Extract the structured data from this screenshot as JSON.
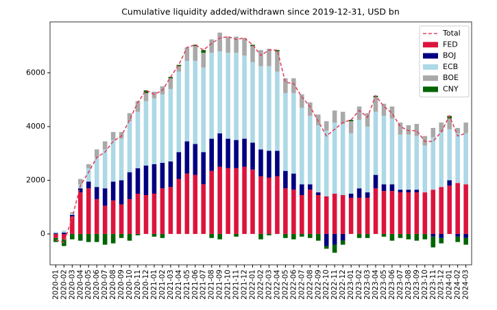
{
  "chart_data": {
    "type": "stacked-bar",
    "title": "Cumulative liquidity added/withdrawn since 2019-12-31, USD bn",
    "categories": [
      "2020-01",
      "2020-02",
      "2020-03",
      "2020-04",
      "2020-05",
      "2020-06",
      "2020-07",
      "2020-08",
      "2020-09",
      "2020-10",
      "2020-11",
      "2020-12",
      "2021-01",
      "2021-02",
      "2021-03",
      "2021-04",
      "2021-05",
      "2021-06",
      "2021-07",
      "2021-08",
      "2021-09",
      "2021-10",
      "2021-11",
      "2021-12",
      "2022-01",
      "2022-02",
      "2022-03",
      "2022-04",
      "2022-05",
      "2022-06",
      "2022-07",
      "2022-08",
      "2022-09",
      "2022-10",
      "2022-11",
      "2022-12",
      "2023-01",
      "2023-02",
      "2023-03",
      "2023-04",
      "2023-05",
      "2023-06",
      "2023-07",
      "2023-08",
      "2023-09",
      "2023-10",
      "2023-11",
      "2023-12",
      "2024-01",
      "2024-02",
      "2024-03"
    ],
    "series": [
      {
        "name": "FED",
        "color": "#dc143c",
        "values": [
          -150,
          -200,
          650,
          1550,
          1700,
          1300,
          1050,
          1250,
          1100,
          1300,
          1500,
          1450,
          1500,
          1700,
          1750,
          2050,
          2250,
          2200,
          1850,
          2350,
          2500,
          2450,
          2450,
          2500,
          2400,
          2150,
          2100,
          2150,
          1700,
          1650,
          1450,
          1650,
          1450,
          1400,
          1500,
          1450,
          1350,
          1350,
          1350,
          1700,
          1600,
          1600,
          1550,
          1550,
          1550,
          1550,
          1650,
          1750,
          1800,
          1900,
          1850
        ]
      },
      {
        "name": "BOJ",
        "color": "#000080",
        "values": [
          30,
          50,
          60,
          150,
          250,
          450,
          650,
          700,
          900,
          1000,
          950,
          1100,
          1100,
          950,
          950,
          1000,
          1200,
          1150,
          1200,
          1200,
          1250,
          1100,
          1050,
          1050,
          1000,
          1000,
          1000,
          950,
          650,
          600,
          400,
          200,
          100,
          -450,
          -400,
          -250,
          150,
          350,
          200,
          500,
          250,
          250,
          100,
          100,
          100,
          0,
          -100,
          -150,
          200,
          -100,
          -150
        ]
      },
      {
        "name": "ECB",
        "color": "#add8e6",
        "values": [
          50,
          80,
          50,
          150,
          500,
          1100,
          1450,
          1550,
          1550,
          1900,
          2100,
          2400,
          2450,
          2550,
          2700,
          3000,
          3000,
          3100,
          3150,
          3200,
          3050,
          3200,
          3250,
          3100,
          3000,
          3100,
          3150,
          2950,
          2900,
          3000,
          2850,
          2550,
          2500,
          2450,
          2650,
          2650,
          2250,
          2550,
          2450,
          2350,
          2550,
          2450,
          2050,
          2050,
          2000,
          1750,
          1950,
          2050,
          1900,
          1850,
          1900
        ]
      },
      {
        "name": "BOE",
        "color": "#a9a9a9",
        "values": [
          0,
          0,
          50,
          200,
          150,
          300,
          300,
          300,
          250,
          300,
          400,
          300,
          250,
          300,
          400,
          200,
          500,
          550,
          550,
          500,
          700,
          600,
          600,
          650,
          600,
          600,
          650,
          750,
          550,
          550,
          500,
          500,
          400,
          350,
          450,
          450,
          450,
          500,
          500,
          550,
          450,
          450,
          450,
          350,
          450,
          350,
          350,
          350,
          400,
          200,
          400
        ]
      },
      {
        "name": "CNY",
        "color": "#006400",
        "values": [
          -150,
          -250,
          -200,
          -250,
          -300,
          -300,
          -400,
          -350,
          -150,
          -250,
          -50,
          100,
          -100,
          -150,
          50,
          50,
          0,
          50,
          100,
          -150,
          -200,
          0,
          -100,
          0,
          50,
          -200,
          -50,
          50,
          -150,
          -200,
          -100,
          -150,
          -250,
          -100,
          -300,
          -150,
          50,
          -150,
          -150,
          50,
          -100,
          -250,
          -150,
          -200,
          -250,
          -200,
          -400,
          -200,
          100,
          -200,
          -250
        ]
      }
    ],
    "total": {
      "name": "Total",
      "color": "#e0405e",
      "values": [
        -220,
        -320,
        610,
        1800,
        2300,
        2850,
        3050,
        3450,
        3650,
        4250,
        4900,
        5350,
        5200,
        5350,
        5850,
        6300,
        6950,
        7050,
        6850,
        7100,
        7300,
        7350,
        7250,
        7300,
        7050,
        6650,
        6850,
        6850,
        5650,
        5600,
        5100,
        4750,
        4200,
        3650,
        3900,
        4150,
        4250,
        4600,
        4350,
        5150,
        4750,
        4500,
        4000,
        3850,
        3850,
        3450,
        3450,
        3800,
        4400,
        3650,
        3750
      ]
    },
    "ylim": [
      -1150,
      7900
    ],
    "yticks": [
      0,
      2000,
      4000,
      6000
    ],
    "grid": false,
    "legend": "upper right"
  }
}
